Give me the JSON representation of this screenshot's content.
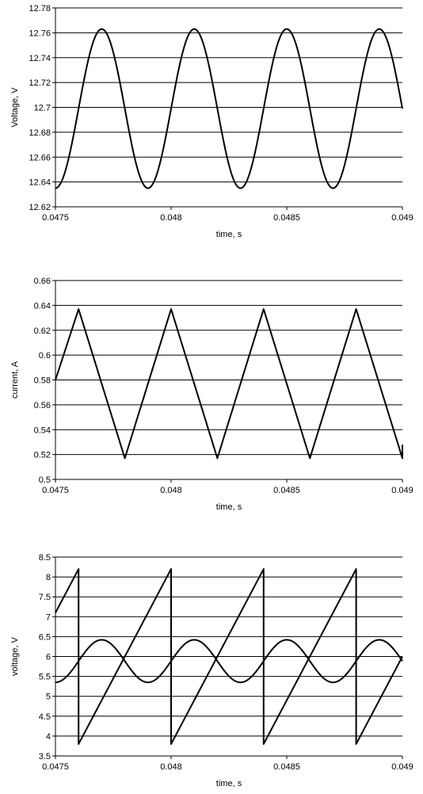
{
  "chart_data": [
    {
      "type": "line",
      "xlabel": "time, s",
      "ylabel": "Voltage, V",
      "xlim": [
        0.0475,
        0.049
      ],
      "ylim": [
        12.62,
        12.78
      ],
      "x_ticks": [
        "0.0475",
        "0.048",
        "0.0485",
        "0.049"
      ],
      "y_ticks": [
        "12.62",
        "12.64",
        "12.66",
        "12.68",
        "12.7",
        "12.72",
        "12.74",
        "12.76",
        "12.78"
      ],
      "grid": "horizontal",
      "series": [
        {
          "shape": "sine",
          "period": 0.0004,
          "min": 12.635,
          "max": 12.763,
          "peak_x": 0.0477,
          "x_range": [
            0.0475,
            0.049
          ]
        }
      ]
    },
    {
      "type": "line",
      "xlabel": "time, s",
      "ylabel": "current, A",
      "xlim": [
        0.0475,
        0.049
      ],
      "ylim": [
        0.5,
        0.66
      ],
      "x_ticks": [
        "0.0475",
        "0.048",
        "0.0485",
        "0.049"
      ],
      "y_ticks": [
        "0.5",
        "0.52",
        "0.54",
        "0.56",
        "0.58",
        "0.6",
        "0.62",
        "0.64",
        "0.66"
      ],
      "grid": "horizontal",
      "series": [
        {
          "shape": "polyline",
          "x": [
            0.0475,
            0.0476,
            0.0478,
            0.048,
            0.0482,
            0.0484,
            0.0486,
            0.0488,
            0.049,
            0.049
          ],
          "y": [
            0.58,
            0.637,
            0.517,
            0.637,
            0.517,
            0.637,
            0.517,
            0.637,
            0.517,
            0.528
          ]
        }
      ]
    },
    {
      "type": "line",
      "xlabel": "time, s",
      "ylabel": "voltage, V",
      "xlim": [
        0.0475,
        0.049
      ],
      "ylim": [
        3.5,
        8.5
      ],
      "x_ticks": [
        "0.0475",
        "0.048",
        "0.0485",
        "0.049"
      ],
      "y_ticks": [
        "3.5",
        "4",
        "4.5",
        "5",
        "5.5",
        "6",
        "6.5",
        "7",
        "7.5",
        "8",
        "8.5"
      ],
      "grid": "horizontal",
      "series": [
        {
          "shape": "sine",
          "period": 0.0004,
          "min": 5.35,
          "max": 6.42,
          "peak_x": 0.0477,
          "x_range": [
            0.0475,
            0.049
          ]
        },
        {
          "shape": "polyline",
          "x": [
            0.0475,
            0.0476,
            0.0476,
            0.048,
            0.048,
            0.0484,
            0.0484,
            0.0488,
            0.0488,
            0.049
          ],
          "y": [
            7.1,
            8.2,
            3.8,
            8.2,
            3.8,
            8.2,
            3.8,
            8.2,
            3.8,
            6.0
          ]
        }
      ]
    }
  ]
}
